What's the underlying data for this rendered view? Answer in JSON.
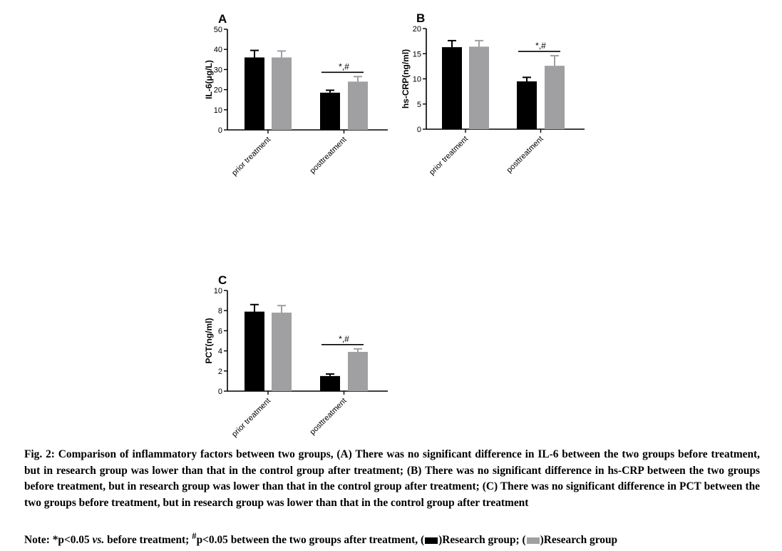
{
  "chart_data": [
    {
      "type": "bar",
      "panel": "A",
      "ylabel": "IL-6(μg/L)",
      "ylim": [
        0,
        50
      ],
      "yticks": [
        0,
        10,
        20,
        30,
        40,
        50
      ],
      "categories": [
        "prior treatment",
        "posttreatment"
      ],
      "series": [
        {
          "values": [
            36,
            18.5
          ],
          "errors": [
            3.5,
            1.2
          ],
          "color": "#000000"
        },
        {
          "values": [
            36,
            24
          ],
          "errors": [
            3.2,
            2.5
          ],
          "color": "#a0a0a3"
        }
      ],
      "annotation": {
        "text": "*,#",
        "category": 1
      }
    },
    {
      "type": "bar",
      "panel": "B",
      "ylabel": "hs-CRP(ng/ml)",
      "ylim": [
        0,
        20
      ],
      "yticks": [
        0,
        5,
        10,
        15,
        20
      ],
      "categories": [
        "prior treatment",
        "posttreatment"
      ],
      "series": [
        {
          "values": [
            16.3,
            9.5
          ],
          "errors": [
            1.3,
            0.8
          ],
          "color": "#000000"
        },
        {
          "values": [
            16.4,
            12.6
          ],
          "errors": [
            1.2,
            2.0
          ],
          "color": "#a0a0a3"
        }
      ],
      "annotation": {
        "text": "*,#",
        "category": 1
      }
    },
    {
      "type": "bar",
      "panel": "C",
      "ylabel": "PCT(ng/ml)",
      "ylim": [
        0,
        10
      ],
      "yticks": [
        0,
        2,
        4,
        6,
        8,
        10
      ],
      "categories": [
        "prior treatment",
        "posttreatment"
      ],
      "series": [
        {
          "values": [
            7.9,
            1.5
          ],
          "errors": [
            0.7,
            0.2
          ],
          "color": "#000000"
        },
        {
          "values": [
            7.8,
            3.9
          ],
          "errors": [
            0.7,
            0.3
          ],
          "color": "#a0a0a3"
        }
      ],
      "annotation": {
        "text": "*,#",
        "category": 1
      }
    }
  ],
  "caption": {
    "fig_label": "Fig. 2:",
    "text": "Comparison of inflammatory factors between two groups, (A) There was no significant difference in IL-6 between the two groups before treatment, but in research group was lower than that in the control group after treatment; (B) There was no significant difference in hs-CRP between the two groups before treatment, but in research group was lower than that in the control group after treatment; (C) There was no significant difference in PCT between the two groups before treatment, but in research group was lower than that in the control group after treatment"
  },
  "note": {
    "prefix": "Note: *p<0.05 ",
    "vs": "vs.",
    "middle": " before treatment; ",
    "hash": "#",
    "after_hash": "p<0.05 between the two groups after treatment, (",
    "legend1_text": ")Research group; (",
    "legend2_text": ")Research group",
    "black_color": "#000000",
    "gray_color": "#a0a0a3"
  }
}
